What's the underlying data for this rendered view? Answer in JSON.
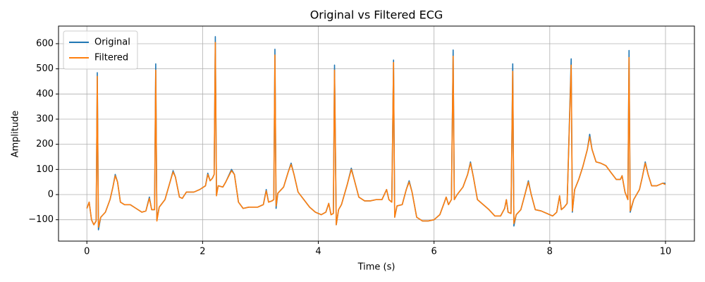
{
  "chart_data": {
    "type": "line",
    "title": "Original vs Filtered ECG",
    "xlabel": "Time (s)",
    "ylabel": "Amplitude",
    "x": [
      0,
      0.04,
      0.08,
      0.12,
      0.16,
      0.18,
      0.2,
      0.24,
      0.32,
      0.4,
      0.45,
      0.49,
      0.53,
      0.58,
      0.65,
      0.75,
      0.85,
      0.95,
      1.02,
      1.08,
      1.12,
      1.17,
      1.19,
      1.21,
      1.25,
      1.35,
      1.45,
      1.49,
      1.53,
      1.6,
      1.65,
      1.72,
      1.85,
      1.95,
      2.05,
      2.09,
      2.13,
      2.17,
      2.2,
      2.22,
      2.24,
      2.27,
      2.35,
      2.4,
      2.5,
      2.55,
      2.62,
      2.7,
      2.8,
      2.95,
      3.05,
      3.1,
      3.14,
      3.2,
      3.23,
      3.25,
      3.27,
      3.3,
      3.4,
      3.48,
      3.53,
      3.58,
      3.65,
      3.75,
      3.85,
      3.95,
      4.05,
      4.13,
      4.18,
      4.22,
      4.26,
      4.28,
      4.31,
      4.35,
      4.4,
      4.5,
      4.57,
      4.62,
      4.7,
      4.8,
      4.9,
      5.0,
      5.1,
      5.18,
      5.22,
      5.27,
      5.3,
      5.32,
      5.36,
      5.45,
      5.52,
      5.57,
      5.62,
      5.7,
      5.8,
      5.9,
      6.0,
      6.1,
      6.18,
      6.21,
      6.25,
      6.3,
      6.33,
      6.35,
      6.4,
      6.5,
      6.58,
      6.63,
      6.68,
      6.75,
      6.85,
      6.95,
      7.05,
      7.15,
      7.22,
      7.25,
      7.28,
      7.33,
      7.36,
      7.38,
      7.42,
      7.5,
      7.57,
      7.63,
      7.68,
      7.75,
      7.85,
      7.95,
      8.05,
      8.12,
      8.17,
      8.2,
      8.25,
      8.3,
      8.37,
      8.39,
      8.43,
      8.5,
      8.57,
      8.65,
      8.69,
      8.73,
      8.8,
      8.88,
      8.97,
      9.05,
      9.15,
      9.22,
      9.25,
      9.3,
      9.35,
      9.37,
      9.39,
      9.45,
      9.55,
      9.6,
      9.65,
      9.7,
      9.76,
      9.85,
      9.95,
      10.0
    ],
    "series": [
      {
        "name": "Original",
        "color": "#1f77b4",
        "values": [
          -55,
          -30,
          -100,
          -120,
          -105,
          485,
          -140,
          -90,
          -70,
          -20,
          30,
          80,
          50,
          -30,
          -40,
          -40,
          -55,
          -70,
          -65,
          -10,
          -60,
          -60,
          520,
          -100,
          -50,
          -20,
          60,
          95,
          70,
          -10,
          -15,
          10,
          10,
          20,
          35,
          85,
          55,
          65,
          80,
          628,
          0,
          35,
          30,
          50,
          100,
          80,
          -30,
          -55,
          -50,
          -50,
          -40,
          20,
          -30,
          -25,
          -20,
          578,
          -55,
          5,
          30,
          90,
          125,
          80,
          10,
          -20,
          -50,
          -70,
          -80,
          -70,
          -35,
          -80,
          -75,
          515,
          -120,
          -60,
          -40,
          40,
          105,
          60,
          -10,
          -25,
          -25,
          -20,
          -20,
          20,
          -20,
          -30,
          535,
          -90,
          -45,
          -40,
          20,
          55,
          10,
          -90,
          -105,
          -105,
          -100,
          -80,
          -30,
          -10,
          -40,
          -20,
          575,
          -20,
          0,
          30,
          80,
          130,
          70,
          -20,
          -40,
          -60,
          -85,
          -85,
          -55,
          -20,
          -70,
          -75,
          520,
          -125,
          -80,
          -60,
          0,
          55,
          0,
          -60,
          -65,
          -75,
          -85,
          -70,
          -5,
          -60,
          -50,
          -35,
          540,
          -70,
          20,
          60,
          110,
          180,
          240,
          180,
          130,
          125,
          115,
          90,
          60,
          60,
          75,
          10,
          -20,
          573,
          -70,
          -20,
          20,
          70,
          130,
          80,
          35,
          35,
          45,
          45
        ]
      },
      {
        "name": "Filtered",
        "color": "#ff7f0e",
        "values": [
          -55,
          -30,
          -100,
          -120,
          -105,
          470,
          -130,
          -90,
          -70,
          -20,
          30,
          75,
          50,
          -30,
          -40,
          -40,
          -55,
          -70,
          -65,
          -15,
          -60,
          -60,
          495,
          -105,
          -50,
          -20,
          60,
          90,
          70,
          -10,
          -15,
          10,
          10,
          20,
          35,
          80,
          55,
          65,
          80,
          605,
          -5,
          35,
          30,
          50,
          95,
          80,
          -30,
          -55,
          -50,
          -50,
          -40,
          15,
          -30,
          -25,
          -20,
          555,
          -45,
          5,
          30,
          90,
          120,
          80,
          10,
          -20,
          -50,
          -70,
          -80,
          -70,
          -35,
          -80,
          -75,
          495,
          -120,
          -60,
          -40,
          40,
          100,
          60,
          -10,
          -25,
          -25,
          -20,
          -20,
          20,
          -20,
          -30,
          525,
          -90,
          -45,
          -40,
          20,
          50,
          10,
          -90,
          -105,
          -105,
          -100,
          -80,
          -30,
          -10,
          -40,
          -20,
          550,
          -20,
          0,
          30,
          80,
          125,
          70,
          -20,
          -40,
          -60,
          -85,
          -85,
          -55,
          -20,
          -70,
          -75,
          490,
          -115,
          -80,
          -60,
          0,
          50,
          0,
          -60,
          -65,
          -75,
          -85,
          -70,
          -5,
          -60,
          -50,
          -35,
          515,
          -65,
          20,
          60,
          110,
          180,
          230,
          180,
          130,
          125,
          115,
          90,
          60,
          60,
          75,
          10,
          -20,
          545,
          -65,
          -20,
          20,
          70,
          125,
          80,
          35,
          35,
          45,
          40
        ]
      }
    ],
    "xlim": [
      -0.49,
      10.5
    ],
    "ylim": [
      -185,
      670
    ],
    "xticks": [
      0,
      2,
      4,
      6,
      8,
      10
    ],
    "yticks": [
      {
        "value": -100,
        "label": "−100"
      },
      0,
      100,
      200,
      300,
      400,
      500,
      600
    ],
    "grid": true,
    "legend": "upper-left"
  }
}
